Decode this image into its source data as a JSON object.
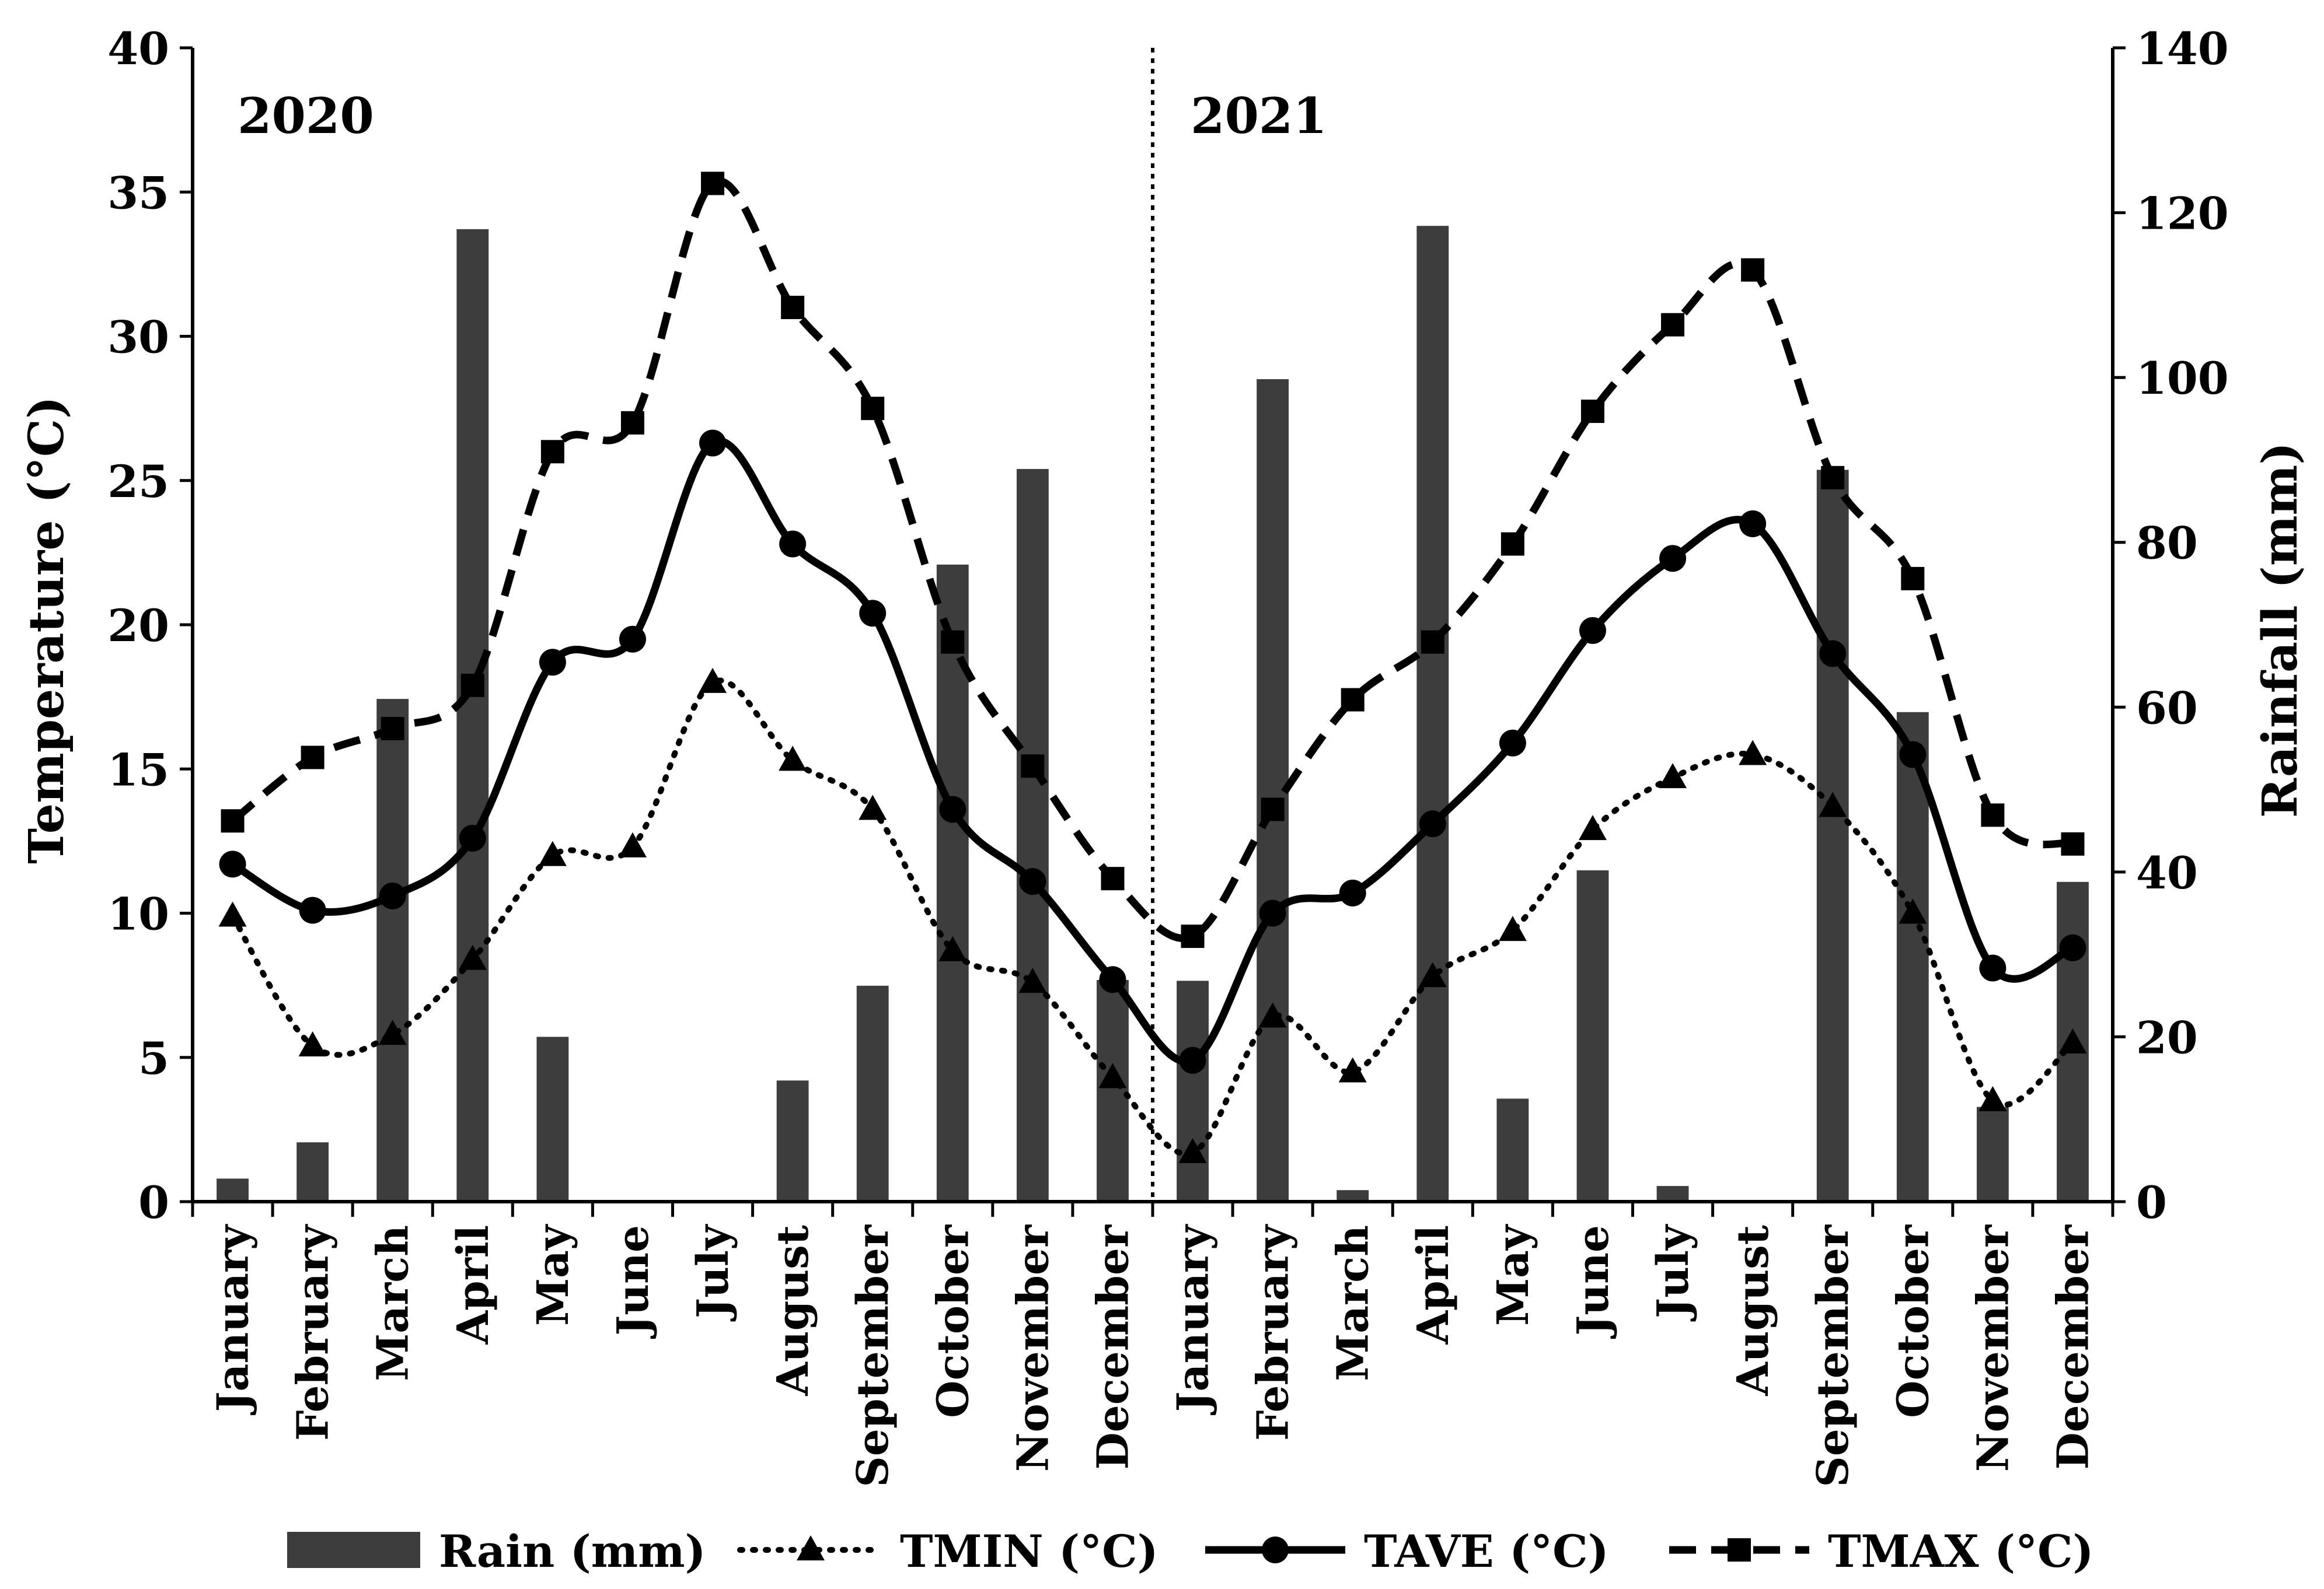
{
  "chart_data": {
    "type": "combo-bar-line",
    "categories": [
      "January",
      "February",
      "March",
      "April",
      "May",
      "June",
      "July",
      "August",
      "September",
      "October",
      "November",
      "December",
      "January",
      "February",
      "March",
      "April",
      "May",
      "June",
      "July",
      "August",
      "September",
      "October",
      "November",
      "December"
    ],
    "year_labels": [
      "2020",
      "2021"
    ],
    "y_left": {
      "label": "Temperature (°C)",
      "min": 0,
      "max": 40,
      "ticks": [
        "0",
        "5",
        "10",
        "15",
        "20",
        "25",
        "30",
        "35",
        "40"
      ]
    },
    "y_right": {
      "label": "Rainfall (mm)",
      "min": 0,
      "max": 140,
      "ticks": [
        "0",
        "20",
        "40",
        "60",
        "80",
        "100",
        "120",
        "140"
      ]
    },
    "grid": false,
    "legend_position": "bottom",
    "colors": {
      "bar": "#3d3d3d",
      "line": "#000000"
    },
    "series": [
      {
        "name": "Rain (mm)",
        "kind": "bar",
        "axis": "right",
        "values": [
          2.8,
          7.2,
          61,
          118,
          20,
          0,
          0,
          14.7,
          26.2,
          77.3,
          88.9,
          26.9,
          26.8,
          99.8,
          1.4,
          118.4,
          12.5,
          40.2,
          1.9,
          0,
          88.8,
          59.4,
          11.5,
          38.8
        ]
      },
      {
        "name": "TMIN (°C)",
        "kind": "line",
        "axis": "left",
        "style": "dotted",
        "marker": "triangle",
        "values": [
          9.9,
          5.4,
          5.8,
          8.4,
          12.0,
          12.3,
          18.0,
          15.3,
          13.6,
          8.7,
          7.6,
          4.3,
          1.7,
          6.4,
          4.5,
          7.8,
          9.4,
          12.9,
          14.7,
          15.5,
          13.7,
          10.0,
          3.5,
          5.5
        ]
      },
      {
        "name": "TAVE (°C)",
        "kind": "line",
        "axis": "left",
        "style": "solid",
        "marker": "circle",
        "values": [
          11.7,
          10.1,
          10.6,
          12.6,
          18.7,
          19.5,
          26.3,
          22.8,
          20.4,
          13.6,
          11.1,
          7.7,
          4.9,
          10.0,
          10.7,
          13.1,
          15.9,
          19.8,
          22.3,
          23.5,
          19.0,
          15.5,
          8.1,
          8.8
        ]
      },
      {
        "name": "TMAX (°C)",
        "kind": "line",
        "axis": "left",
        "style": "dashed",
        "marker": "square",
        "values": [
          13.2,
          15.4,
          16.4,
          17.9,
          26.0,
          27.0,
          35.3,
          31.0,
          27.5,
          19.4,
          15.1,
          11.2,
          9.2,
          13.6,
          17.4,
          19.4,
          22.8,
          27.4,
          30.4,
          32.3,
          25.1,
          21.6,
          13.4,
          12.4
        ]
      }
    ]
  }
}
